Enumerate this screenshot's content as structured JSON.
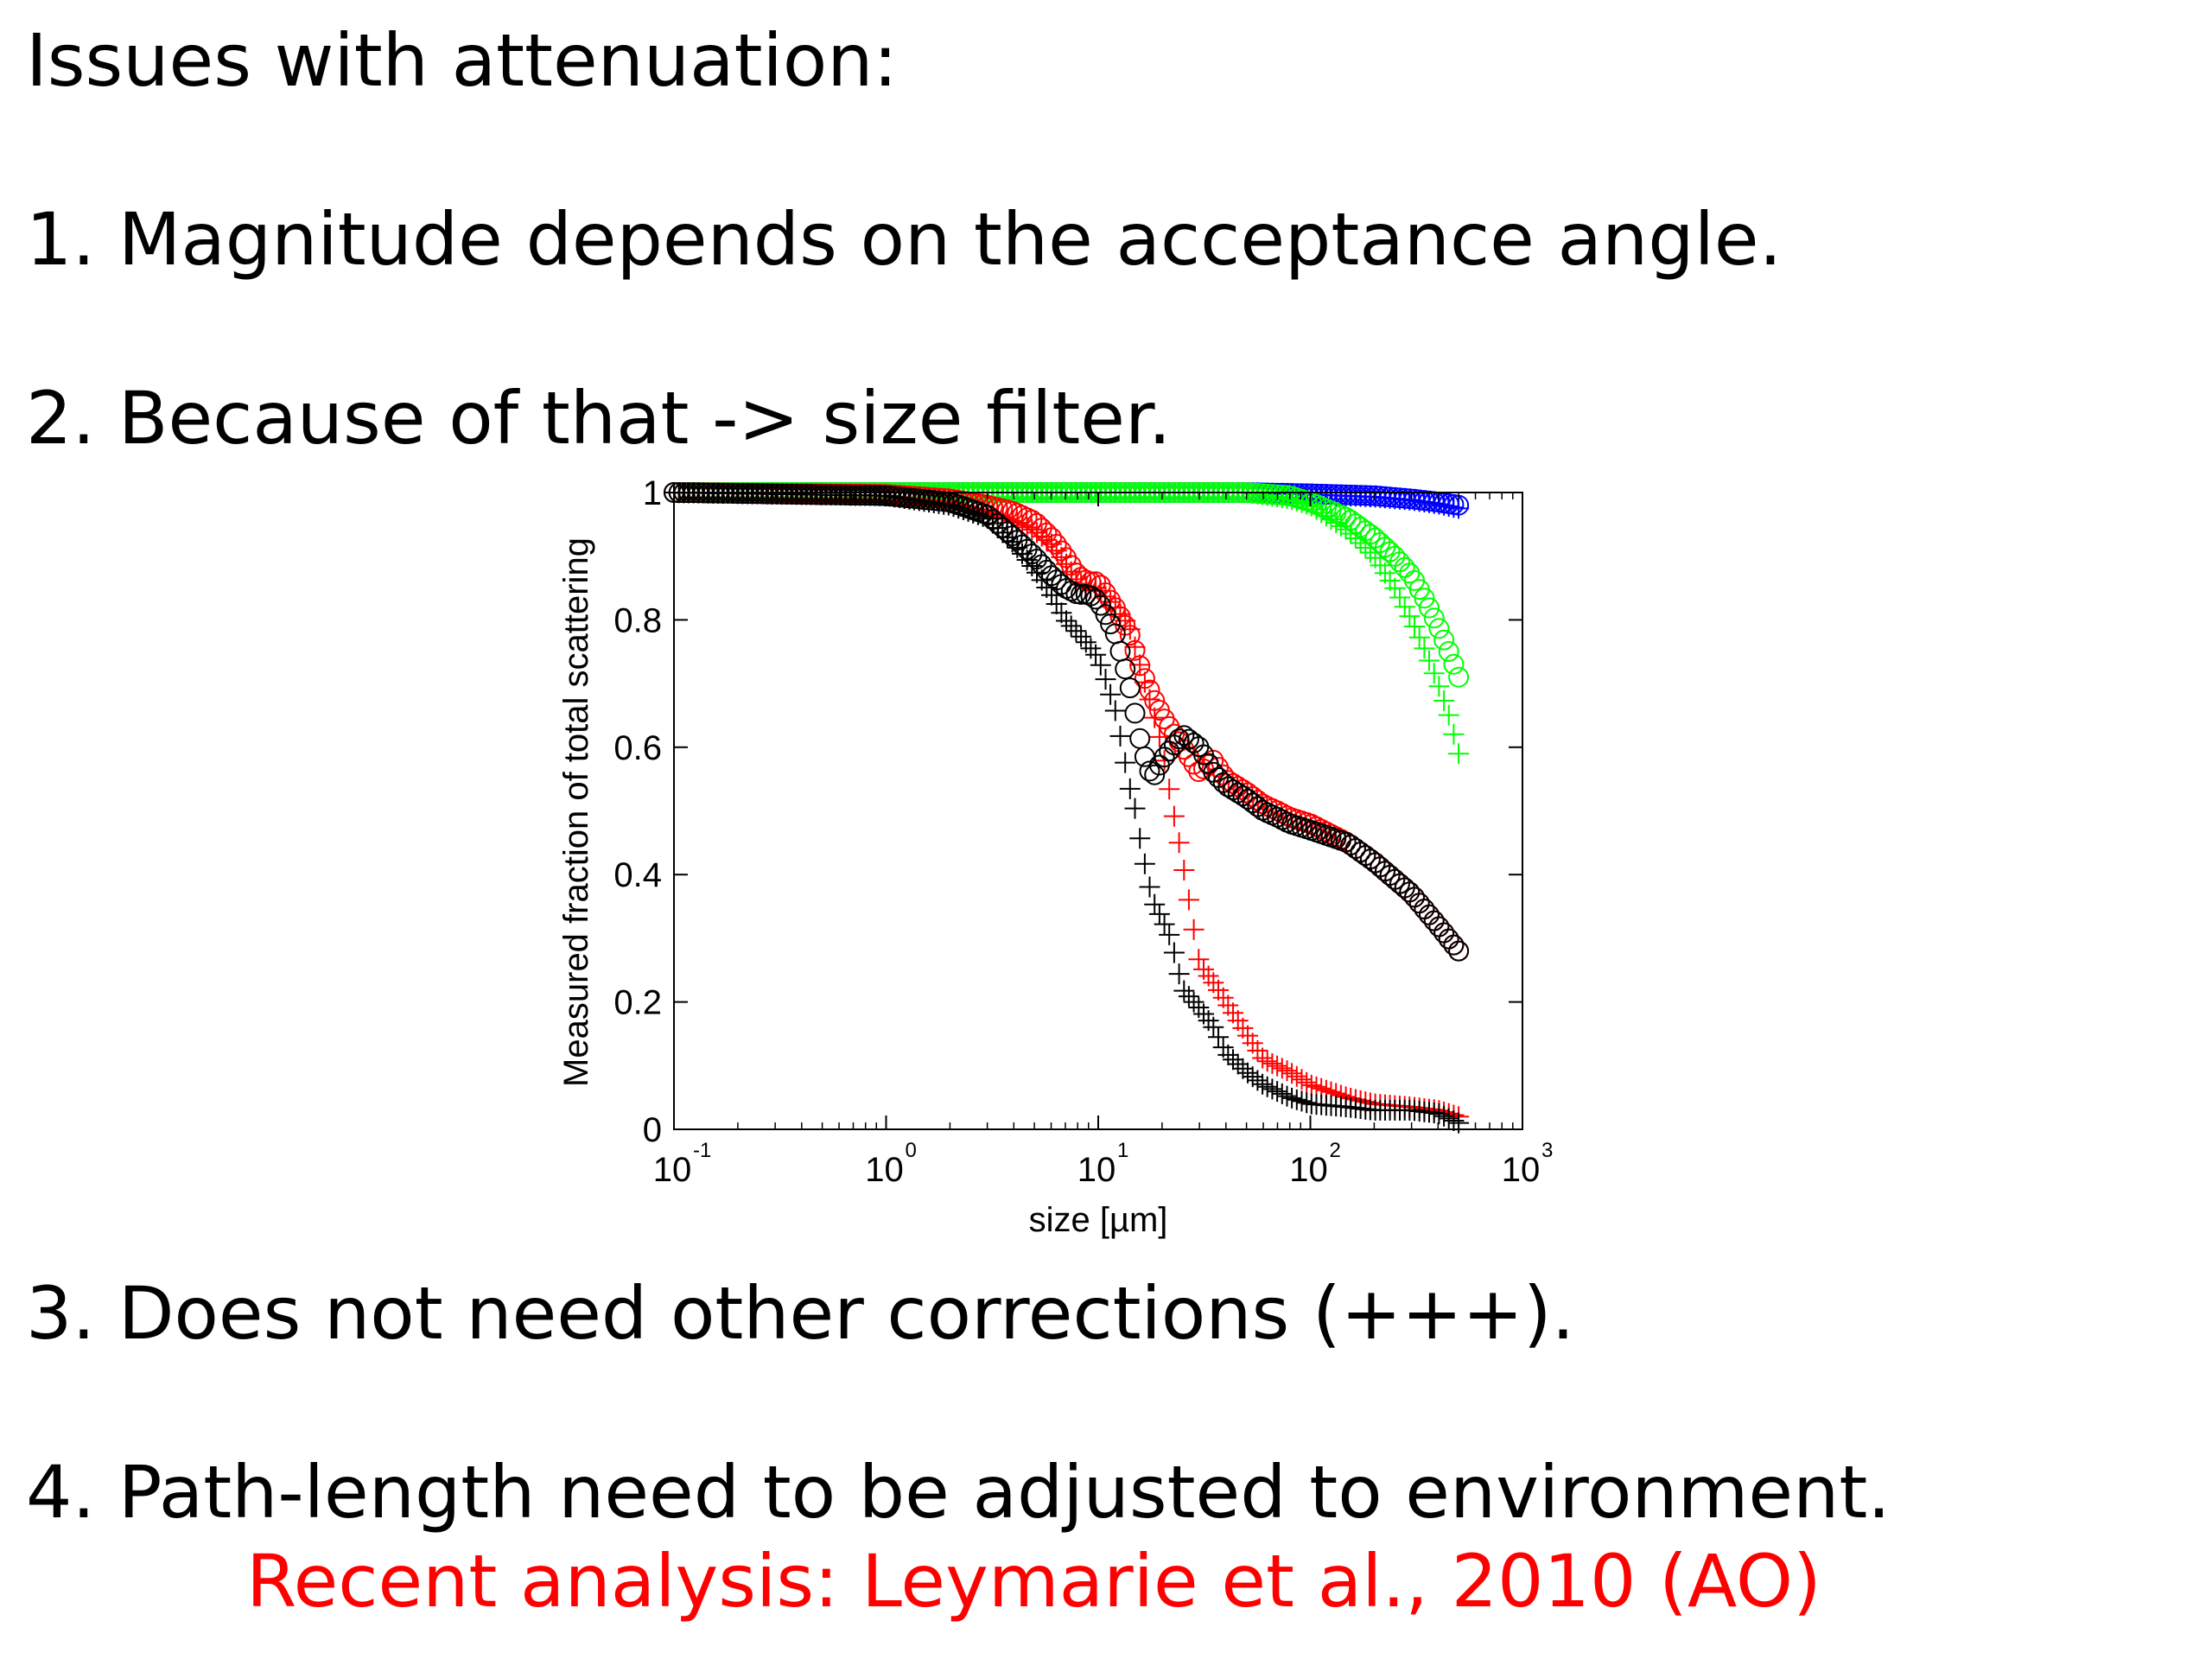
{
  "slide": {
    "title": "Issues with attenuation:",
    "item1": "1. Magnitude depends on the acceptance angle.",
    "item2": "2. Because of that -> size filter.",
    "item3": "3. Does not need other corrections (+++).",
    "item4": "4. Path-length need to be adjusted to environment.",
    "reference": "Recent analysis: Leymarie et al., 2010 (AO)"
  },
  "colors": {
    "text": "#000000",
    "reference": "#ff0000"
  },
  "chart_data": {
    "type": "scatter",
    "xscale": "log",
    "xlim": [
      0.1,
      1000
    ],
    "ylim": [
      0,
      1
    ],
    "xlabel": "size [µm]",
    "ylabel": "Measured fraction of total scattering",
    "x_ticks": [
      {
        "base": "10",
        "exp": "-1"
      },
      {
        "base": "10",
        "exp": "0"
      },
      {
        "base": "10",
        "exp": "1"
      },
      {
        "base": "10",
        "exp": "2"
      },
      {
        "base": "10",
        "exp": "3"
      }
    ],
    "y_ticks": [
      "0",
      "0.2",
      "0.4",
      "0.6",
      "0.8",
      "1"
    ],
    "grid": false,
    "series": [
      {
        "color": "#0000ff",
        "marker": "o",
        "x": [
          0.1,
          10,
          50,
          100,
          200,
          300,
          400,
          500
        ],
        "y": [
          1.0,
          1.0,
          1.0,
          0.998,
          0.995,
          0.99,
          0.985,
          0.98
        ]
      },
      {
        "color": "#0000ff",
        "marker": "+",
        "x": [
          0.1,
          10,
          50,
          100,
          200,
          300,
          400,
          500
        ],
        "y": [
          1.0,
          1.0,
          1.0,
          0.997,
          0.993,
          0.988,
          0.982,
          0.975
        ]
      },
      {
        "color": "#00ff00",
        "marker": "o",
        "x": [
          0.1,
          10,
          50,
          80,
          100,
          150,
          200,
          250,
          300,
          350,
          400,
          450,
          500
        ],
        "y": [
          1.0,
          1.0,
          1.0,
          0.995,
          0.985,
          0.96,
          0.93,
          0.9,
          0.87,
          0.83,
          0.79,
          0.75,
          0.71
        ]
      },
      {
        "color": "#00ff00",
        "marker": "+",
        "x": [
          0.1,
          10,
          50,
          80,
          100,
          150,
          200,
          250,
          300,
          350,
          400,
          450,
          500
        ],
        "y": [
          1.0,
          1.0,
          1.0,
          0.99,
          0.98,
          0.94,
          0.9,
          0.85,
          0.8,
          0.75,
          0.7,
          0.65,
          0.59
        ]
      },
      {
        "color": "#ff0000",
        "marker": "o",
        "x": [
          0.1,
          1,
          2,
          3,
          4,
          5,
          6,
          7,
          8,
          9,
          10,
          12,
          14,
          16,
          18,
          20,
          25,
          30,
          35,
          40,
          50,
          60,
          70,
          80,
          100,
          150,
          200,
          300,
          400,
          500
        ],
        "y": [
          1.0,
          0.997,
          0.99,
          0.98,
          0.97,
          0.955,
          0.93,
          0.9,
          0.87,
          0.86,
          0.86,
          0.82,
          0.78,
          0.72,
          0.68,
          0.65,
          0.6,
          0.56,
          0.58,
          0.55,
          0.53,
          0.51,
          0.5,
          0.49,
          0.48,
          0.45,
          0.42,
          0.37,
          0.32,
          0.28
        ]
      },
      {
        "color": "#ff0000",
        "marker": "+",
        "x": [
          0.1,
          1,
          2,
          3,
          4,
          5,
          6,
          7,
          8,
          9,
          10,
          12,
          14,
          16,
          18,
          20,
          22,
          25,
          30,
          35,
          40,
          50,
          60,
          80,
          100,
          150,
          200,
          300,
          400,
          500
        ],
        "y": [
          1.0,
          0.995,
          0.985,
          0.97,
          0.955,
          0.94,
          0.92,
          0.89,
          0.86,
          0.85,
          0.85,
          0.82,
          0.79,
          0.72,
          0.66,
          0.6,
          0.52,
          0.42,
          0.26,
          0.23,
          0.2,
          0.15,
          0.11,
          0.09,
          0.07,
          0.05,
          0.04,
          0.035,
          0.03,
          0.02
        ]
      },
      {
        "color": "#000000",
        "marker": "o",
        "x": [
          0.1,
          1,
          2,
          3,
          4,
          5,
          6,
          7,
          8,
          9,
          10,
          12,
          14,
          16,
          18,
          20,
          25,
          30,
          35,
          40,
          50,
          60,
          70,
          80,
          100,
          150,
          200,
          300,
          400,
          500
        ],
        "y": [
          1.0,
          0.995,
          0.985,
          0.965,
          0.93,
          0.9,
          0.87,
          0.85,
          0.84,
          0.84,
          0.83,
          0.78,
          0.7,
          0.6,
          0.55,
          0.58,
          0.62,
          0.6,
          0.56,
          0.54,
          0.52,
          0.5,
          0.49,
          0.48,
          0.47,
          0.45,
          0.42,
          0.37,
          0.32,
          0.28
        ]
      },
      {
        "color": "#000000",
        "marker": "+",
        "x": [
          0.1,
          1,
          2,
          3,
          4,
          5,
          6,
          7,
          8,
          9,
          10,
          11,
          12,
          13,
          14,
          15,
          16,
          17,
          18,
          20,
          22,
          25,
          30,
          35,
          40,
          50,
          60,
          80,
          100,
          150,
          200,
          300,
          400,
          500
        ],
        "y": [
          1.0,
          0.995,
          0.98,
          0.96,
          0.92,
          0.88,
          0.84,
          0.8,
          0.78,
          0.76,
          0.74,
          0.7,
          0.66,
          0.6,
          0.54,
          0.5,
          0.44,
          0.4,
          0.36,
          0.33,
          0.3,
          0.22,
          0.19,
          0.16,
          0.12,
          0.09,
          0.07,
          0.05,
          0.04,
          0.035,
          0.03,
          0.03,
          0.025,
          0.01
        ]
      }
    ]
  }
}
